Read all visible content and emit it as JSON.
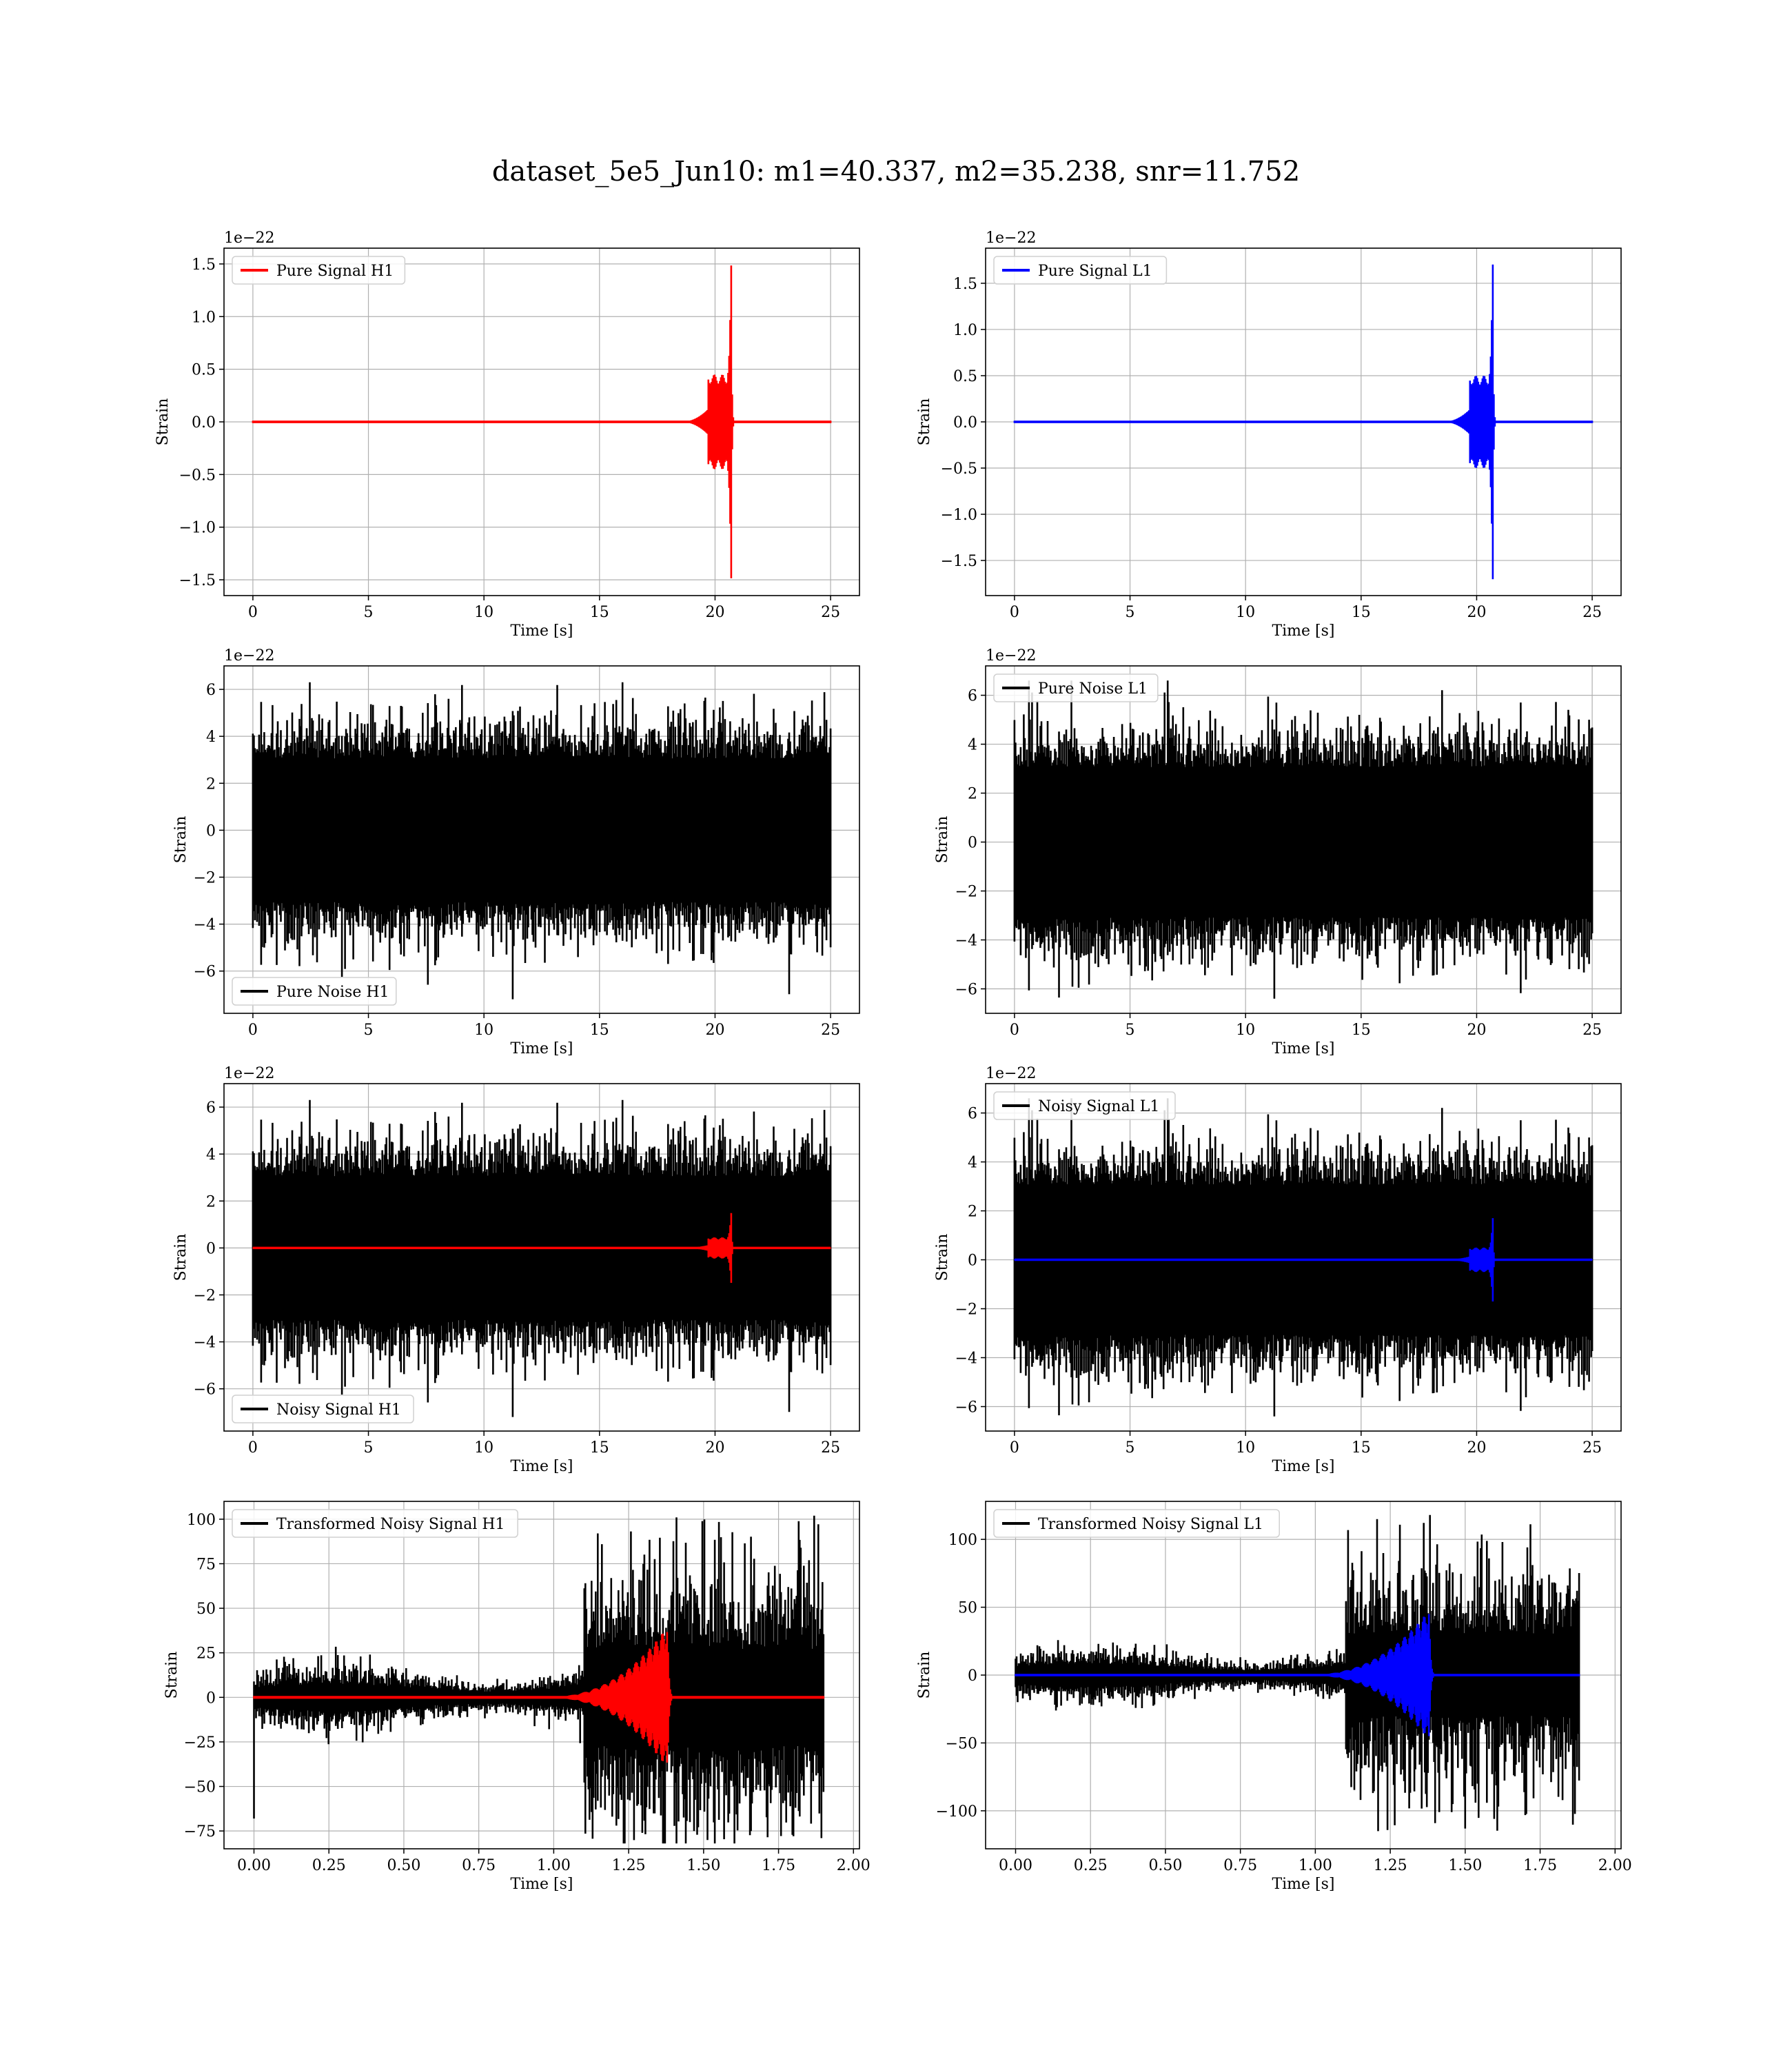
{
  "title": "dataset_5e5_Jun10: m1=40.337, m2=35.238, snr=11.752",
  "chart_data": [
    {
      "id": "pure-signal-h1",
      "type": "line",
      "xlabel": "Time [s]",
      "ylabel": "Strain",
      "offset_text": "1e−22",
      "xlim": [
        -1.25,
        26.25
      ],
      "ylim": [
        -1.65,
        1.65
      ],
      "xticks": [
        0,
        5,
        10,
        15,
        20,
        25
      ],
      "xtick_labels": [
        "0",
        "5",
        "10",
        "15",
        "20",
        "25"
      ],
      "yticks": [
        -1.5,
        -1.0,
        -0.5,
        0.0,
        0.5,
        1.0,
        1.5
      ],
      "ytick_labels": [
        "−1.5",
        "−1.0",
        "−0.5",
        "0.0",
        "0.5",
        "1.0",
        "1.5"
      ],
      "legend_position": "upper-left",
      "grid": true,
      "series": [
        {
          "name": "Pure Signal H1",
          "color": "#ff0000",
          "kind": "chirp",
          "x_start": 0,
          "x_end": 25,
          "t_onset": 18.5,
          "t_merger": 20.7,
          "inspiral_amp": 0.45,
          "peak_amp": 1.5
        }
      ]
    },
    {
      "id": "pure-signal-l1",
      "type": "line",
      "xlabel": "Time [s]",
      "ylabel": "Strain",
      "offset_text": "1e−22",
      "xlim": [
        -1.25,
        26.25
      ],
      "ylim": [
        -1.88,
        1.88
      ],
      "xticks": [
        0,
        5,
        10,
        15,
        20,
        25
      ],
      "xtick_labels": [
        "0",
        "5",
        "10",
        "15",
        "20",
        "25"
      ],
      "yticks": [
        -1.5,
        -1.0,
        -0.5,
        0.0,
        0.5,
        1.0,
        1.5
      ],
      "ytick_labels": [
        "−1.5",
        "−1.0",
        "−0.5",
        "0.0",
        "0.5",
        "1.0",
        "1.5"
      ],
      "legend_position": "upper-left",
      "grid": true,
      "series": [
        {
          "name": "Pure Signal L1",
          "color": "#0000ff",
          "kind": "chirp",
          "x_start": 0,
          "x_end": 25,
          "t_onset": 18.5,
          "t_merger": 20.7,
          "inspiral_amp": 0.5,
          "peak_amp": 1.72
        }
      ]
    },
    {
      "id": "pure-noise-h1",
      "type": "line",
      "xlabel": "Time [s]",
      "ylabel": "Strain",
      "offset_text": "1e−22",
      "xlim": [
        -1.25,
        26.25
      ],
      "ylim": [
        -7.8,
        7.0
      ],
      "xticks": [
        0,
        5,
        10,
        15,
        20,
        25
      ],
      "xtick_labels": [
        "0",
        "5",
        "10",
        "15",
        "20",
        "25"
      ],
      "yticks": [
        -6,
        -4,
        -2,
        0,
        2,
        4,
        6
      ],
      "ytick_labels": [
        "−6",
        "−4",
        "−2",
        "0",
        "2",
        "4",
        "6"
      ],
      "legend_position": "lower-left",
      "grid": true,
      "series": [
        {
          "name": "Pure Noise H1",
          "color": "#000000",
          "kind": "noise",
          "x_start": 0,
          "x_end": 25,
          "sigma": 1.7,
          "max": 6.3,
          "min": -7.2,
          "seed": 11
        }
      ]
    },
    {
      "id": "pure-noise-l1",
      "type": "line",
      "xlabel": "Time [s]",
      "ylabel": "Strain",
      "offset_text": "1e−22",
      "xlim": [
        -1.25,
        26.25
      ],
      "ylim": [
        -7.0,
        7.2
      ],
      "xticks": [
        0,
        5,
        10,
        15,
        20,
        25
      ],
      "xtick_labels": [
        "0",
        "5",
        "10",
        "15",
        "20",
        "25"
      ],
      "yticks": [
        -6,
        -4,
        -2,
        0,
        2,
        4,
        6
      ],
      "ytick_labels": [
        "−6",
        "−4",
        "−2",
        "0",
        "2",
        "4",
        "6"
      ],
      "legend_position": "upper-left",
      "grid": true,
      "series": [
        {
          "name": "Pure Noise L1",
          "color": "#000000",
          "kind": "noise",
          "x_start": 0,
          "x_end": 25,
          "sigma": 1.7,
          "max": 6.6,
          "min": -6.4,
          "seed": 23
        }
      ]
    },
    {
      "id": "noisy-signal-h1",
      "type": "line",
      "xlabel": "Time [s]",
      "ylabel": "Strain",
      "offset_text": "1e−22",
      "xlim": [
        -1.25,
        26.25
      ],
      "ylim": [
        -7.8,
        7.0
      ],
      "xticks": [
        0,
        5,
        10,
        15,
        20,
        25
      ],
      "xtick_labels": [
        "0",
        "5",
        "10",
        "15",
        "20",
        "25"
      ],
      "yticks": [
        -6,
        -4,
        -2,
        0,
        2,
        4,
        6
      ],
      "ytick_labels": [
        "−6",
        "−4",
        "−2",
        "0",
        "2",
        "4",
        "6"
      ],
      "legend_position": "lower-left",
      "grid": true,
      "series": [
        {
          "name": "Noisy Signal H1",
          "color": "#000000",
          "kind": "noise",
          "x_start": 0,
          "x_end": 25,
          "sigma": 1.7,
          "max": 6.3,
          "min": -7.2,
          "seed": 11
        },
        {
          "name": "",
          "color": "#ff0000",
          "kind": "chirp",
          "x_start": 0,
          "x_end": 25,
          "t_onset": 18.5,
          "t_merger": 20.7,
          "inspiral_amp": 0.45,
          "peak_amp": 1.5
        }
      ]
    },
    {
      "id": "noisy-signal-l1",
      "type": "line",
      "xlabel": "Time [s]",
      "ylabel": "Strain",
      "offset_text": "1e−22",
      "xlim": [
        -1.25,
        26.25
      ],
      "ylim": [
        -7.0,
        7.2
      ],
      "xticks": [
        0,
        5,
        10,
        15,
        20,
        25
      ],
      "xtick_labels": [
        "0",
        "5",
        "10",
        "15",
        "20",
        "25"
      ],
      "yticks": [
        -6,
        -4,
        -2,
        0,
        2,
        4,
        6
      ],
      "ytick_labels": [
        "−6",
        "−4",
        "−2",
        "0",
        "2",
        "4",
        "6"
      ],
      "legend_position": "upper-left",
      "grid": true,
      "series": [
        {
          "name": "Noisy Signal L1",
          "color": "#000000",
          "kind": "noise",
          "x_start": 0,
          "x_end": 25,
          "sigma": 1.7,
          "max": 6.6,
          "min": -6.4,
          "seed": 23
        },
        {
          "name": "",
          "color": "#0000ff",
          "kind": "chirp",
          "x_start": 0,
          "x_end": 25,
          "t_onset": 18.5,
          "t_merger": 20.7,
          "inspiral_amp": 0.5,
          "peak_amp": 1.72
        }
      ]
    },
    {
      "id": "transformed-noisy-signal-h1",
      "type": "line",
      "xlabel": "Time [s]",
      "ylabel": "Strain",
      "offset_text": "",
      "xlim": [
        -0.1,
        2.02
      ],
      "ylim": [
        -85,
        110
      ],
      "xticks": [
        0.0,
        0.25,
        0.5,
        0.75,
        1.0,
        1.25,
        1.5,
        1.75,
        2.0
      ],
      "xtick_labels": [
        "0.00",
        "0.25",
        "0.50",
        "0.75",
        "1.00",
        "1.25",
        "1.50",
        "1.75",
        "2.00"
      ],
      "yticks": [
        -75,
        -50,
        -25,
        0,
        25,
        50,
        75,
        100
      ],
      "ytick_labels": [
        "−75",
        "−50",
        "−25",
        "0",
        "25",
        "50",
        "75",
        "100"
      ],
      "legend_position": "upper-left",
      "grid": true,
      "series": [
        {
          "name": "Transformed Noisy Signal H1",
          "color": "#000000",
          "kind": "whitened",
          "x_start": 0,
          "x_end": 1.9,
          "t_rise": 1.1,
          "low_amp": 9,
          "high_amp": 45,
          "max": 102,
          "min": -82,
          "start_spike": -68,
          "seed": 5
        },
        {
          "name": "",
          "color": "#ff0000",
          "kind": "whitened-chirp",
          "x_start": 0,
          "x_end": 1.9,
          "t_onset": 0.95,
          "t_merger": 1.38,
          "peak_amp": 40
        }
      ]
    },
    {
      "id": "transformed-noisy-signal-l1",
      "type": "line",
      "xlabel": "Time [s]",
      "ylabel": "Strain",
      "offset_text": "",
      "xlim": [
        -0.1,
        2.02
      ],
      "ylim": [
        -128,
        128
      ],
      "xticks": [
        0.0,
        0.25,
        0.5,
        0.75,
        1.0,
        1.25,
        1.5,
        1.75,
        2.0
      ],
      "xtick_labels": [
        "0.00",
        "0.25",
        "0.50",
        "0.75",
        "1.00",
        "1.25",
        "1.50",
        "1.75",
        "2.00"
      ],
      "yticks": [
        -100,
        -50,
        0,
        50,
        100
      ],
      "ytick_labels": [
        "−100",
        "−50",
        "0",
        "50",
        "100"
      ],
      "legend_position": "upper-left",
      "grid": true,
      "series": [
        {
          "name": "Transformed Noisy Signal L1",
          "color": "#000000",
          "kind": "whitened",
          "x_start": 0,
          "x_end": 1.88,
          "t_rise": 1.1,
          "low_amp": 10,
          "high_amp": 50,
          "max": 118,
          "min": -115,
          "start_spike": 0,
          "seed": 9
        },
        {
          "name": "",
          "color": "#0000ff",
          "kind": "whitened-chirp",
          "x_start": 0,
          "x_end": 1.88,
          "t_onset": 0.95,
          "t_merger": 1.38,
          "peak_amp": 48
        }
      ]
    }
  ]
}
